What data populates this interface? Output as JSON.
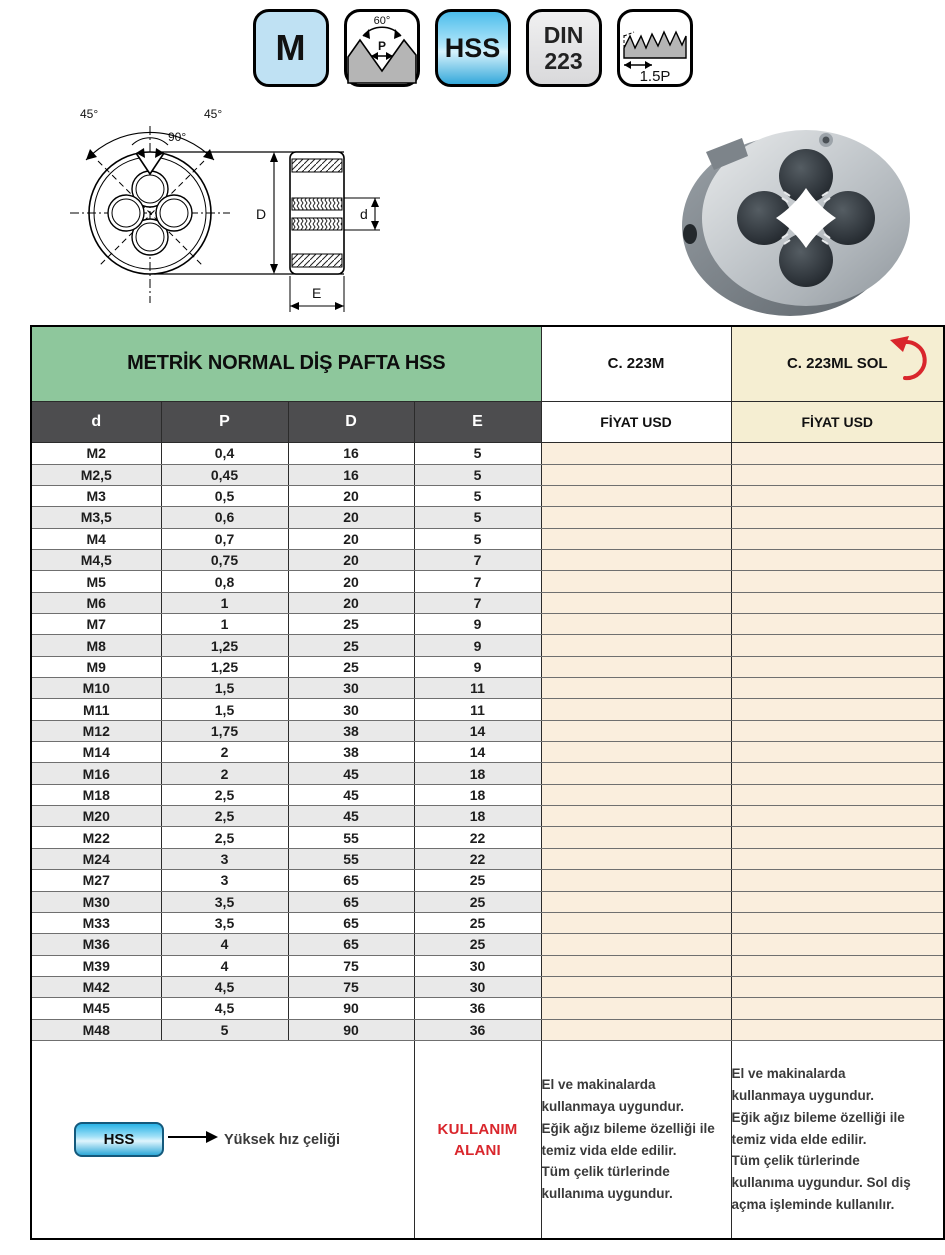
{
  "badges": {
    "metric": "M",
    "angle_label": "60°",
    "pitch_label": "P",
    "hss": "HSS",
    "din_line1": "DIN",
    "din_line2": "223",
    "chamfer": "1.5P"
  },
  "drawing": {
    "angle_left": "45°",
    "angle_right": "45°",
    "angle_top": "90°",
    "dim_outer": "D",
    "dim_hole": "d",
    "dim_width": "E"
  },
  "table": {
    "title": "METRİK NORMAL DİŞ PAFTA HSS",
    "code_right_hand": "C. 223M",
    "code_left_hand": "C. 223ML SOL",
    "price_header": "FİYAT USD",
    "columns": [
      "d",
      "P",
      "D",
      "E"
    ],
    "rows": [
      [
        "M2",
        "0,4",
        "16",
        "5"
      ],
      [
        "M2,5",
        "0,45",
        "16",
        "5"
      ],
      [
        "M3",
        "0,5",
        "20",
        "5"
      ],
      [
        "M3,5",
        "0,6",
        "20",
        "5"
      ],
      [
        "M4",
        "0,7",
        "20",
        "5"
      ],
      [
        "M4,5",
        "0,75",
        "20",
        "7"
      ],
      [
        "M5",
        "0,8",
        "20",
        "7"
      ],
      [
        "M6",
        "1",
        "20",
        "7"
      ],
      [
        "M7",
        "1",
        "25",
        "9"
      ],
      [
        "M8",
        "1,25",
        "25",
        "9"
      ],
      [
        "M9",
        "1,25",
        "25",
        "9"
      ],
      [
        "M10",
        "1,5",
        "30",
        "11"
      ],
      [
        "M11",
        "1,5",
        "30",
        "11"
      ],
      [
        "M12",
        "1,75",
        "38",
        "14"
      ],
      [
        "M14",
        "2",
        "38",
        "14"
      ],
      [
        "M16",
        "2",
        "45",
        "18"
      ],
      [
        "M18",
        "2,5",
        "45",
        "18"
      ],
      [
        "M20",
        "2,5",
        "45",
        "18"
      ],
      [
        "M22",
        "2,5",
        "55",
        "22"
      ],
      [
        "M24",
        "3",
        "55",
        "22"
      ],
      [
        "M27",
        "3",
        "65",
        "25"
      ],
      [
        "M30",
        "3,5",
        "65",
        "25"
      ],
      [
        "M33",
        "3,5",
        "65",
        "25"
      ],
      [
        "M36",
        "4",
        "65",
        "25"
      ],
      [
        "M39",
        "4",
        "75",
        "30"
      ],
      [
        "M42",
        "4,5",
        "75",
        "30"
      ],
      [
        "M45",
        "4,5",
        "90",
        "36"
      ],
      [
        "M48",
        "5",
        "90",
        "36"
      ]
    ]
  },
  "footer": {
    "hss_chip": "HSS",
    "hss_desc": "Yüksek hız çeliği",
    "usage_title": "KULLANIM ALANI",
    "usage_right_hand": "El ve makinalarda\nkullanmaya uygundur.\nEğik ağız bileme özelliği ile\ntemiz vida elde edilir.\nTüm çelik türlerinde\nkullanıma uygundur.",
    "usage_left_hand": "El ve makinalarda\nkullanmaya uygundur.\nEğik ağız bileme özelliği ile\ntemiz vida elde edilir.\nTüm çelik türlerinde\nkullanıma uygundur. Sol diş\naçma işleminde kullanılır."
  },
  "colors": {
    "header_green": "#8ec79c",
    "header_cream": "#f5eed2",
    "price_body_peach": "#faeedd",
    "column_head_gray": "#4d4d4f",
    "row_alt_gray": "#e9e9e9",
    "accent_red": "#d9262c",
    "badge_light_blue": "#bfe1f3",
    "badge_cyan": "#35a8da"
  }
}
